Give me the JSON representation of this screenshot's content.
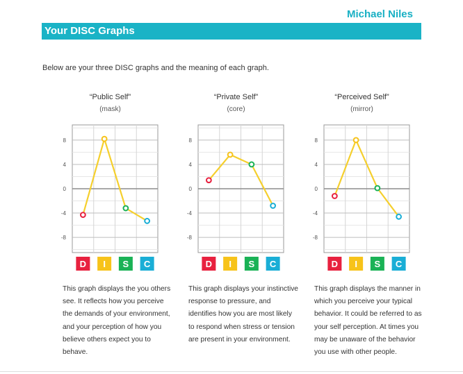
{
  "header": {
    "name": "Michael Niles",
    "section_title": "Your DISC Graphs"
  },
  "intro": "Below are your three DISC graphs and the meaning of each graph.",
  "colors": {
    "accent": "#1ab3c6",
    "line": "#f5cf2d",
    "D": "#e8213f",
    "I": "#f7c31a",
    "S": "#1ab256",
    "C": "#1aaed6"
  },
  "categories": [
    "D",
    "I",
    "S",
    "C"
  ],
  "chart_data": [
    {
      "type": "line",
      "title": "“Public Self”",
      "subtitle": "(mask)",
      "categories": [
        "D",
        "I",
        "S",
        "C"
      ],
      "values": [
        -4.3,
        8.2,
        -3.2,
        -5.3
      ],
      "yticks": [
        8,
        4,
        0,
        -4,
        -8
      ],
      "ylim": [
        -10.5,
        10.5
      ],
      "grid": true,
      "description": "This graph displays the you others see. It reflects how you perceive the demands of your environment, and your perception of how you believe others expect you to behave."
    },
    {
      "type": "line",
      "title": "“Private Self”",
      "subtitle": "(core)",
      "categories": [
        "D",
        "I",
        "S",
        "C"
      ],
      "values": [
        1.4,
        5.6,
        4.0,
        -2.8
      ],
      "yticks": [
        8,
        4,
        0,
        -4,
        -8
      ],
      "ylim": [
        -10.5,
        10.5
      ],
      "grid": true,
      "description": "This graph displays your instinctive response to pressure, and identifies how you are most likely to respond when stress or tension are present in your environment."
    },
    {
      "type": "line",
      "title": "“Perceived Self”",
      "subtitle": "(mirror)",
      "categories": [
        "D",
        "I",
        "S",
        "C"
      ],
      "values": [
        -1.2,
        8.0,
        0.1,
        -4.6
      ],
      "yticks": [
        8,
        4,
        0,
        -4,
        -8
      ],
      "ylim": [
        -10.5,
        10.5
      ],
      "grid": true,
      "description": "This graph displays the manner in which you perceive your typical behavior. It could be referred to as your self perception. At times you may be unaware of the behavior you use with other people."
    }
  ]
}
